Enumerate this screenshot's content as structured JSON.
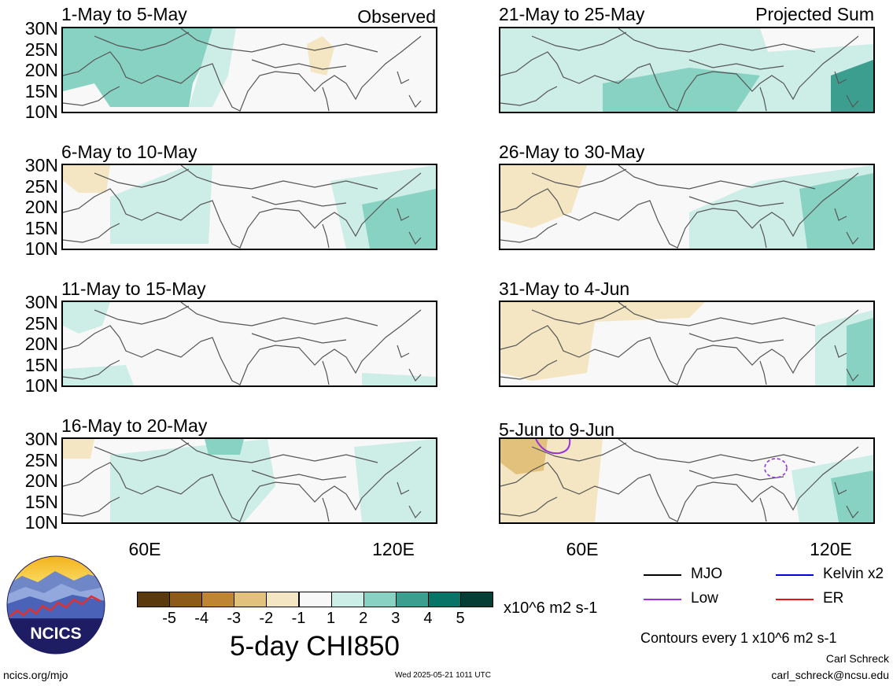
{
  "header": {
    "observed_label": "Observed",
    "projected_label": "Projected Sum"
  },
  "panels": [
    {
      "title": "1-May to 5-May"
    },
    {
      "title": "6-May to 10-May"
    },
    {
      "title": "11-May to 15-May"
    },
    {
      "title": "16-May to 20-May"
    },
    {
      "title": "21-May to 25-May"
    },
    {
      "title": "26-May to 30-May"
    },
    {
      "title": "31-May to 4-Jun"
    },
    {
      "title": "5-Jun to 9-Jun"
    }
  ],
  "lat_labels": [
    "30N",
    "25N",
    "20N",
    "15N",
    "10N"
  ],
  "lon_labels": [
    "60E",
    "120E"
  ],
  "colorbar": {
    "ticks": [
      "-5",
      "-4",
      "-3",
      "-2",
      "-1",
      "1",
      "2",
      "3",
      "4",
      "5"
    ],
    "colors": [
      "#5a3a0c",
      "#8d5a1a",
      "#c08435",
      "#e2c17c",
      "#f4e6c3",
      "#f8f8f8",
      "#cdeee6",
      "#88d2c3",
      "#3c9e8f",
      "#087468",
      "#063d35"
    ],
    "units": "x10^6 m2 s-1",
    "title": "5-day CHI850"
  },
  "legend": {
    "mjo": "MJO",
    "kelvin": "Kelvin x2",
    "low": "Low",
    "er": "ER",
    "colors": {
      "mjo": "#000000",
      "kelvin": "#0000dd",
      "low": "#9a30e0",
      "er": "#ee1111"
    }
  },
  "contours_note": "Contours every 1 x10^6 m2 s-1",
  "logo_text": "NCICS",
  "footer": {
    "url": "ncics.org/mjo",
    "timestamp": "Wed 2025-05-21 1011 UTC",
    "author": "Carl Schreck",
    "email": "carl_schreck@ncsu.edu"
  }
}
